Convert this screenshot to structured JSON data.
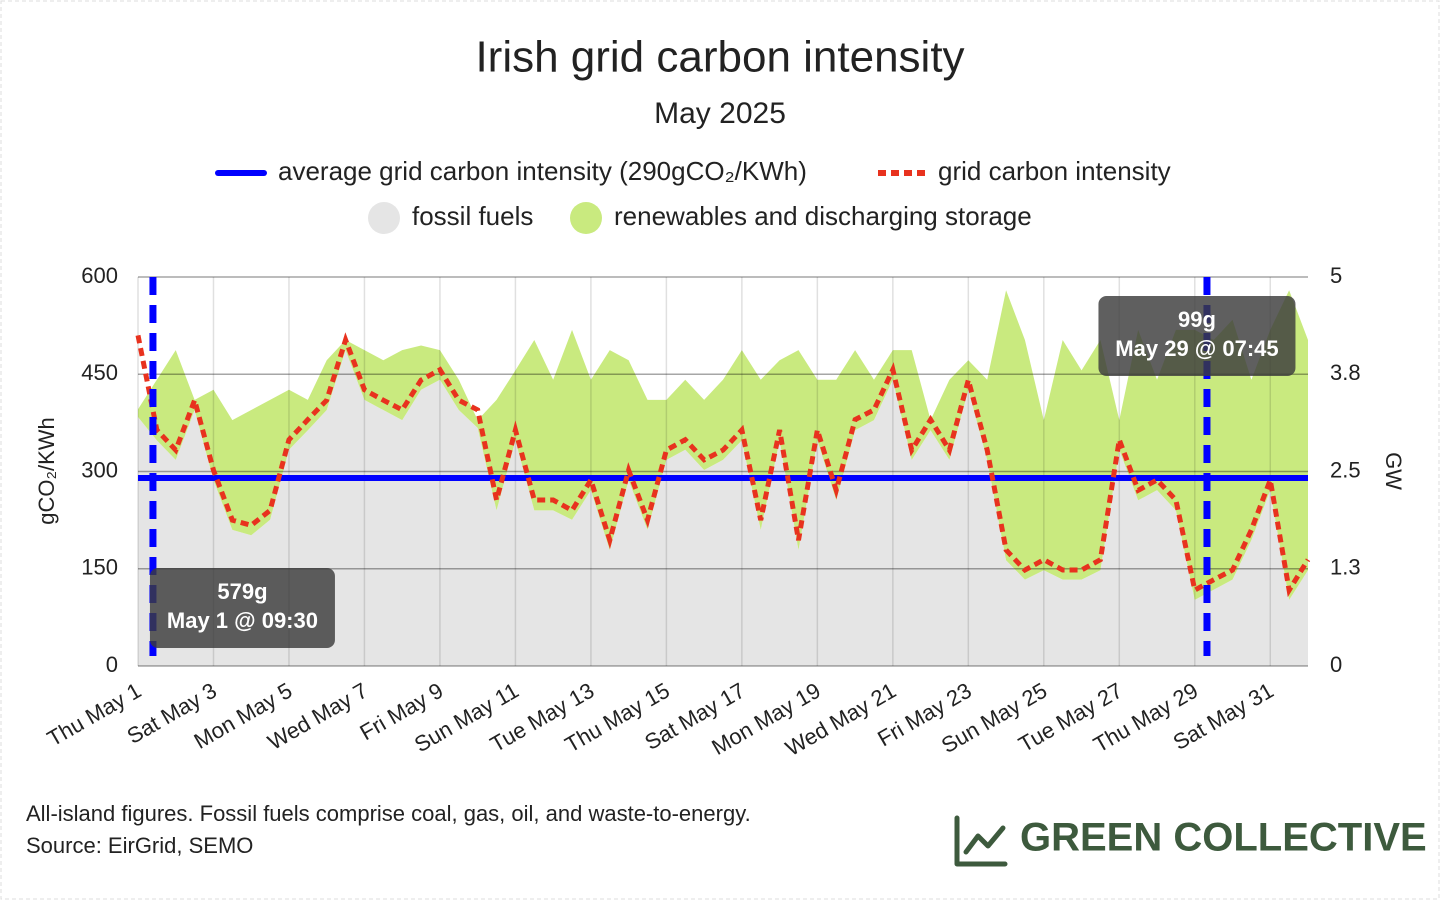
{
  "chart_data": {
    "type": "line",
    "title": "Irish grid carbon intensity",
    "subtitle": "May 2025",
    "y_label": "gCO₂/KWh",
    "y2_label": "GW",
    "xlim": [
      1,
      32
    ],
    "xticks": [
      {
        "value": 1,
        "label": "Thu May 1"
      },
      {
        "value": 3,
        "label": "Sat May 3"
      },
      {
        "value": 5,
        "label": "Mon May 5"
      },
      {
        "value": 7,
        "label": "Wed May 7"
      },
      {
        "value": 9,
        "label": "Fri May 9"
      },
      {
        "value": 11,
        "label": "Sun May 11"
      },
      {
        "value": 13,
        "label": "Tue May 13"
      },
      {
        "value": 15,
        "label": "Thu May 15"
      },
      {
        "value": 17,
        "label": "Sat May 17"
      },
      {
        "value": 19,
        "label": "Mon May 19"
      },
      {
        "value": 21,
        "label": "Wed May 21"
      },
      {
        "value": 23,
        "label": "Fri May 23"
      },
      {
        "value": 25,
        "label": "Sun May 25"
      },
      {
        "value": 27,
        "label": "Tue May 27"
      },
      {
        "value": 29,
        "label": "Thu May 29"
      },
      {
        "value": 31,
        "label": "Sat May 31"
      }
    ],
    "ylim": [
      0,
      600
    ],
    "yticks": [
      0,
      150,
      300,
      450,
      600
    ],
    "y2lim": [
      0,
      5
    ],
    "y2ticks": [
      0,
      {
        "value": 1.25,
        "label": "1.3"
      },
      2.5,
      {
        "value": 3.75,
        "label": "3.8"
      },
      5
    ],
    "grid": true,
    "x": [
      1,
      1.5,
      2,
      2.5,
      3,
      3.5,
      4,
      4.5,
      5,
      5.5,
      6,
      6.5,
      7,
      7.5,
      8,
      8.5,
      9,
      9.5,
      10,
      10.5,
      11,
      11.5,
      12,
      12.5,
      13,
      13.5,
      14,
      14.5,
      15,
      15.5,
      16,
      16.5,
      17,
      17.5,
      18,
      18.5,
      19,
      19.5,
      20,
      20.5,
      21,
      21.5,
      22,
      22.5,
      23,
      23.5,
      24,
      24.5,
      25,
      25.5,
      26,
      26.5,
      27,
      27.5,
      28,
      28.5,
      29,
      29.5,
      30,
      30.5,
      31,
      31.5,
      32
    ],
    "series": [
      {
        "name": "average grid carbon intensity (290gCO₂/KWh)",
        "kind": "hline",
        "color": "#0000ff",
        "value": 290
      },
      {
        "name": "grid carbon intensity",
        "kind": "line",
        "color": "#e8321e",
        "values": [
          510,
          364,
          333,
          410,
          302,
          225,
          217,
          240,
          349,
          380,
          410,
          503,
          426,
          410,
          395,
          441,
          457,
          410,
          395,
          256,
          364,
          256,
          256,
          240,
          287,
          194,
          302,
          225,
          333,
          349,
          318,
          333,
          364,
          225,
          364,
          194,
          364,
          271,
          380,
          395,
          457,
          333,
          380,
          333,
          441,
          333,
          179,
          148,
          164,
          148,
          148,
          164,
          349,
          271,
          287,
          256,
          117,
          133,
          148,
          210,
          287,
          117,
          164
        ]
      },
      {
        "name": "fossil fuels",
        "kind": "area",
        "axis": "y2",
        "color": "#e5e5e5",
        "values": [
          3.2,
          2.9,
          2.65,
          3.29,
          2.39,
          1.75,
          1.68,
          1.88,
          2.78,
          3.03,
          3.29,
          4.06,
          3.42,
          3.29,
          3.16,
          3.55,
          3.68,
          3.29,
          3.06,
          2.0,
          2.9,
          2.0,
          2.0,
          1.88,
          2.26,
          1.49,
          2.39,
          1.75,
          2.65,
          2.78,
          2.52,
          2.65,
          2.9,
          1.75,
          2.9,
          1.49,
          2.9,
          2.13,
          3.03,
          3.16,
          3.68,
          2.65,
          3.03,
          2.65,
          3.55,
          2.65,
          1.36,
          1.11,
          1.23,
          1.11,
          1.11,
          1.23,
          2.78,
          2.13,
          2.26,
          2.0,
          0.85,
          0.98,
          1.11,
          1.62,
          2.26,
          0.85,
          1.23
        ]
      },
      {
        "name": "renewables and discharging storage",
        "kind": "area",
        "axis": "y2",
        "color": "#c9ea7f",
        "values": [
          0.1,
          0.78,
          1.41,
          0.13,
          1.16,
          1.41,
          1.61,
          1.54,
          0.77,
          0.39,
          0.64,
          0.13,
          0.64,
          0.64,
          0.9,
          0.57,
          0.38,
          0.39,
          0.1,
          1.42,
          0.9,
          2.19,
          1.68,
          2.44,
          1.42,
          2.57,
          1.54,
          1.67,
          0.77,
          0.9,
          0.9,
          1.03,
          1.16,
          1.93,
          1.03,
          2.57,
          0.78,
          1.55,
          1.03,
          0.52,
          0.38,
          1.41,
          0.13,
          1.03,
          0.38,
          1.03,
          3.47,
          3.08,
          1.93,
          3.08,
          2.69,
          2.96,
          0.38,
          2.19,
          1.42,
          2.32,
          3.47,
          3.21,
          3.34,
          2.06,
          2.06,
          3.98,
          2.96
        ]
      }
    ],
    "annotations": [
      {
        "x": 1.396,
        "value": 579,
        "label": "579g",
        "time": "May 1 @ 09:30"
      },
      {
        "x": 29.323,
        "value": 99,
        "label": "99g",
        "time": "May 29 @ 07:45"
      }
    ],
    "footnotes": [
      "All-island figures. Fossil fuels comprise coal, gas, oil, and waste-to-energy.",
      "Source: EirGrid, SEMO"
    ],
    "brand": "GREEN COLLECTIVE"
  }
}
